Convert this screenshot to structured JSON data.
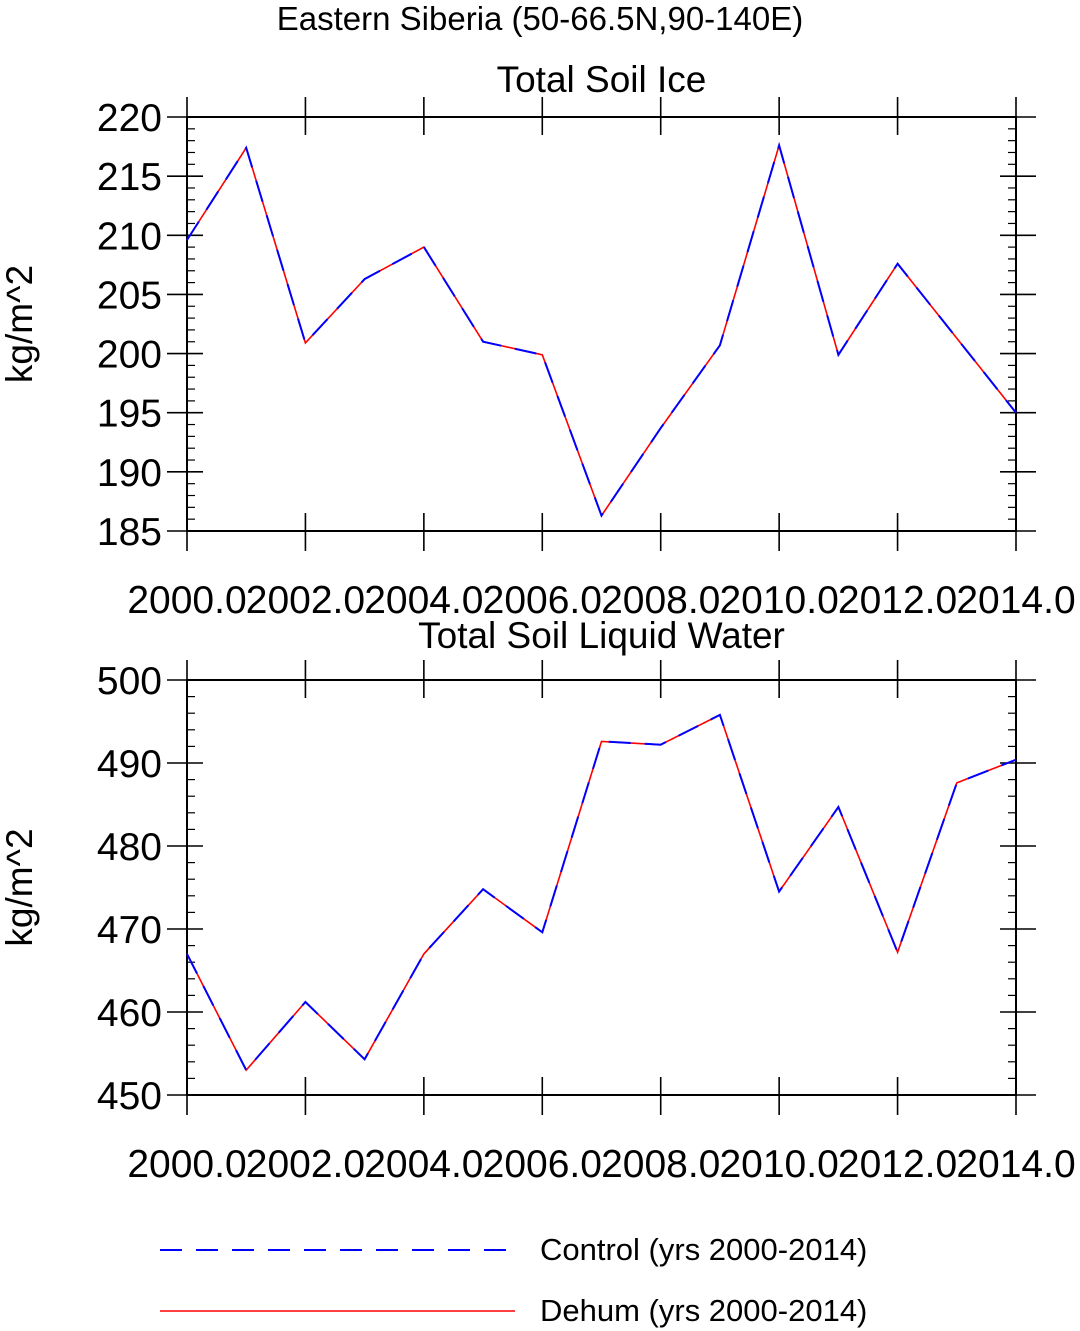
{
  "figure_title": "Eastern Siberia (50-66.5N,90-140E)",
  "colors": {
    "control": "#0000ff",
    "dehum": "#ff0000",
    "axis": "#000000"
  },
  "legend": {
    "items": [
      {
        "label": "Control (yrs 2000-2014)",
        "style": "dashed",
        "color": "#0000ff"
      },
      {
        "label": "Dehum (yrs 2000-2014)",
        "style": "solid",
        "color": "#ff0000"
      }
    ]
  },
  "chart_data": [
    {
      "type": "line",
      "title": "Total Soil Ice",
      "ylabel": "kg/m^2",
      "xlabel": "",
      "xlim": [
        2000,
        2014
      ],
      "ylim": [
        185,
        220
      ],
      "xticks": [
        2000,
        2002,
        2004,
        2006,
        2008,
        2010,
        2012,
        2014
      ],
      "xtick_labels": [
        "2000.0",
        "2002.0",
        "2004.0",
        "2006.0",
        "2008.0",
        "2010.0",
        "2012.0",
        "2014.0"
      ],
      "yticks": [
        185,
        190,
        195,
        200,
        205,
        210,
        215,
        220
      ],
      "yminor_step": 1,
      "x": [
        2000,
        2001,
        2002,
        2003,
        2004,
        2005,
        2006,
        2007,
        2008,
        2009,
        2010,
        2011,
        2012,
        2013,
        2014
      ],
      "series": [
        {
          "name": "Control (yrs 2000-2014)",
          "color": "#0000ff",
          "style": "dashed",
          "values": [
            209.6,
            217.4,
            200.9,
            206.3,
            209.0,
            201.0,
            199.9,
            186.3,
            193.7,
            200.7,
            217.6,
            199.9,
            207.6,
            201.3,
            195.0
          ]
        },
        {
          "name": "Dehum (yrs 2000-2014)",
          "color": "#ff0000",
          "style": "solid",
          "values": [
            209.6,
            217.4,
            200.9,
            206.3,
            209.0,
            201.0,
            199.9,
            186.3,
            193.7,
            200.7,
            217.6,
            199.9,
            207.6,
            201.3,
            195.0
          ]
        }
      ]
    },
    {
      "type": "line",
      "title": "Total Soil Liquid Water",
      "ylabel": "kg/m^2",
      "xlabel": "",
      "xlim": [
        2000,
        2014
      ],
      "ylim": [
        450,
        500
      ],
      "xticks": [
        2000,
        2002,
        2004,
        2006,
        2008,
        2010,
        2012,
        2014
      ],
      "xtick_labels": [
        "2000.0",
        "2002.0",
        "2004.0",
        "2006.0",
        "2008.0",
        "2010.0",
        "2012.0",
        "2014.0"
      ],
      "yticks": [
        450,
        460,
        470,
        480,
        490,
        500
      ],
      "yminor_step": 2,
      "x": [
        2000,
        2001,
        2002,
        2003,
        2004,
        2005,
        2006,
        2007,
        2008,
        2009,
        2010,
        2011,
        2012,
        2013,
        2014
      ],
      "series": [
        {
          "name": "Control (yrs 2000-2014)",
          "color": "#0000ff",
          "style": "dashed",
          "values": [
            467.0,
            453.0,
            461.2,
            454.3,
            467.0,
            474.8,
            469.6,
            492.6,
            492.2,
            495.8,
            474.5,
            484.7,
            467.2,
            487.6,
            490.4
          ]
        },
        {
          "name": "Dehum (yrs 2000-2014)",
          "color": "#ff0000",
          "style": "solid",
          "values": [
            467.0,
            453.0,
            461.2,
            454.3,
            467.0,
            474.8,
            469.6,
            492.6,
            492.2,
            495.8,
            474.5,
            484.7,
            467.2,
            487.6,
            490.4
          ]
        }
      ]
    }
  ]
}
